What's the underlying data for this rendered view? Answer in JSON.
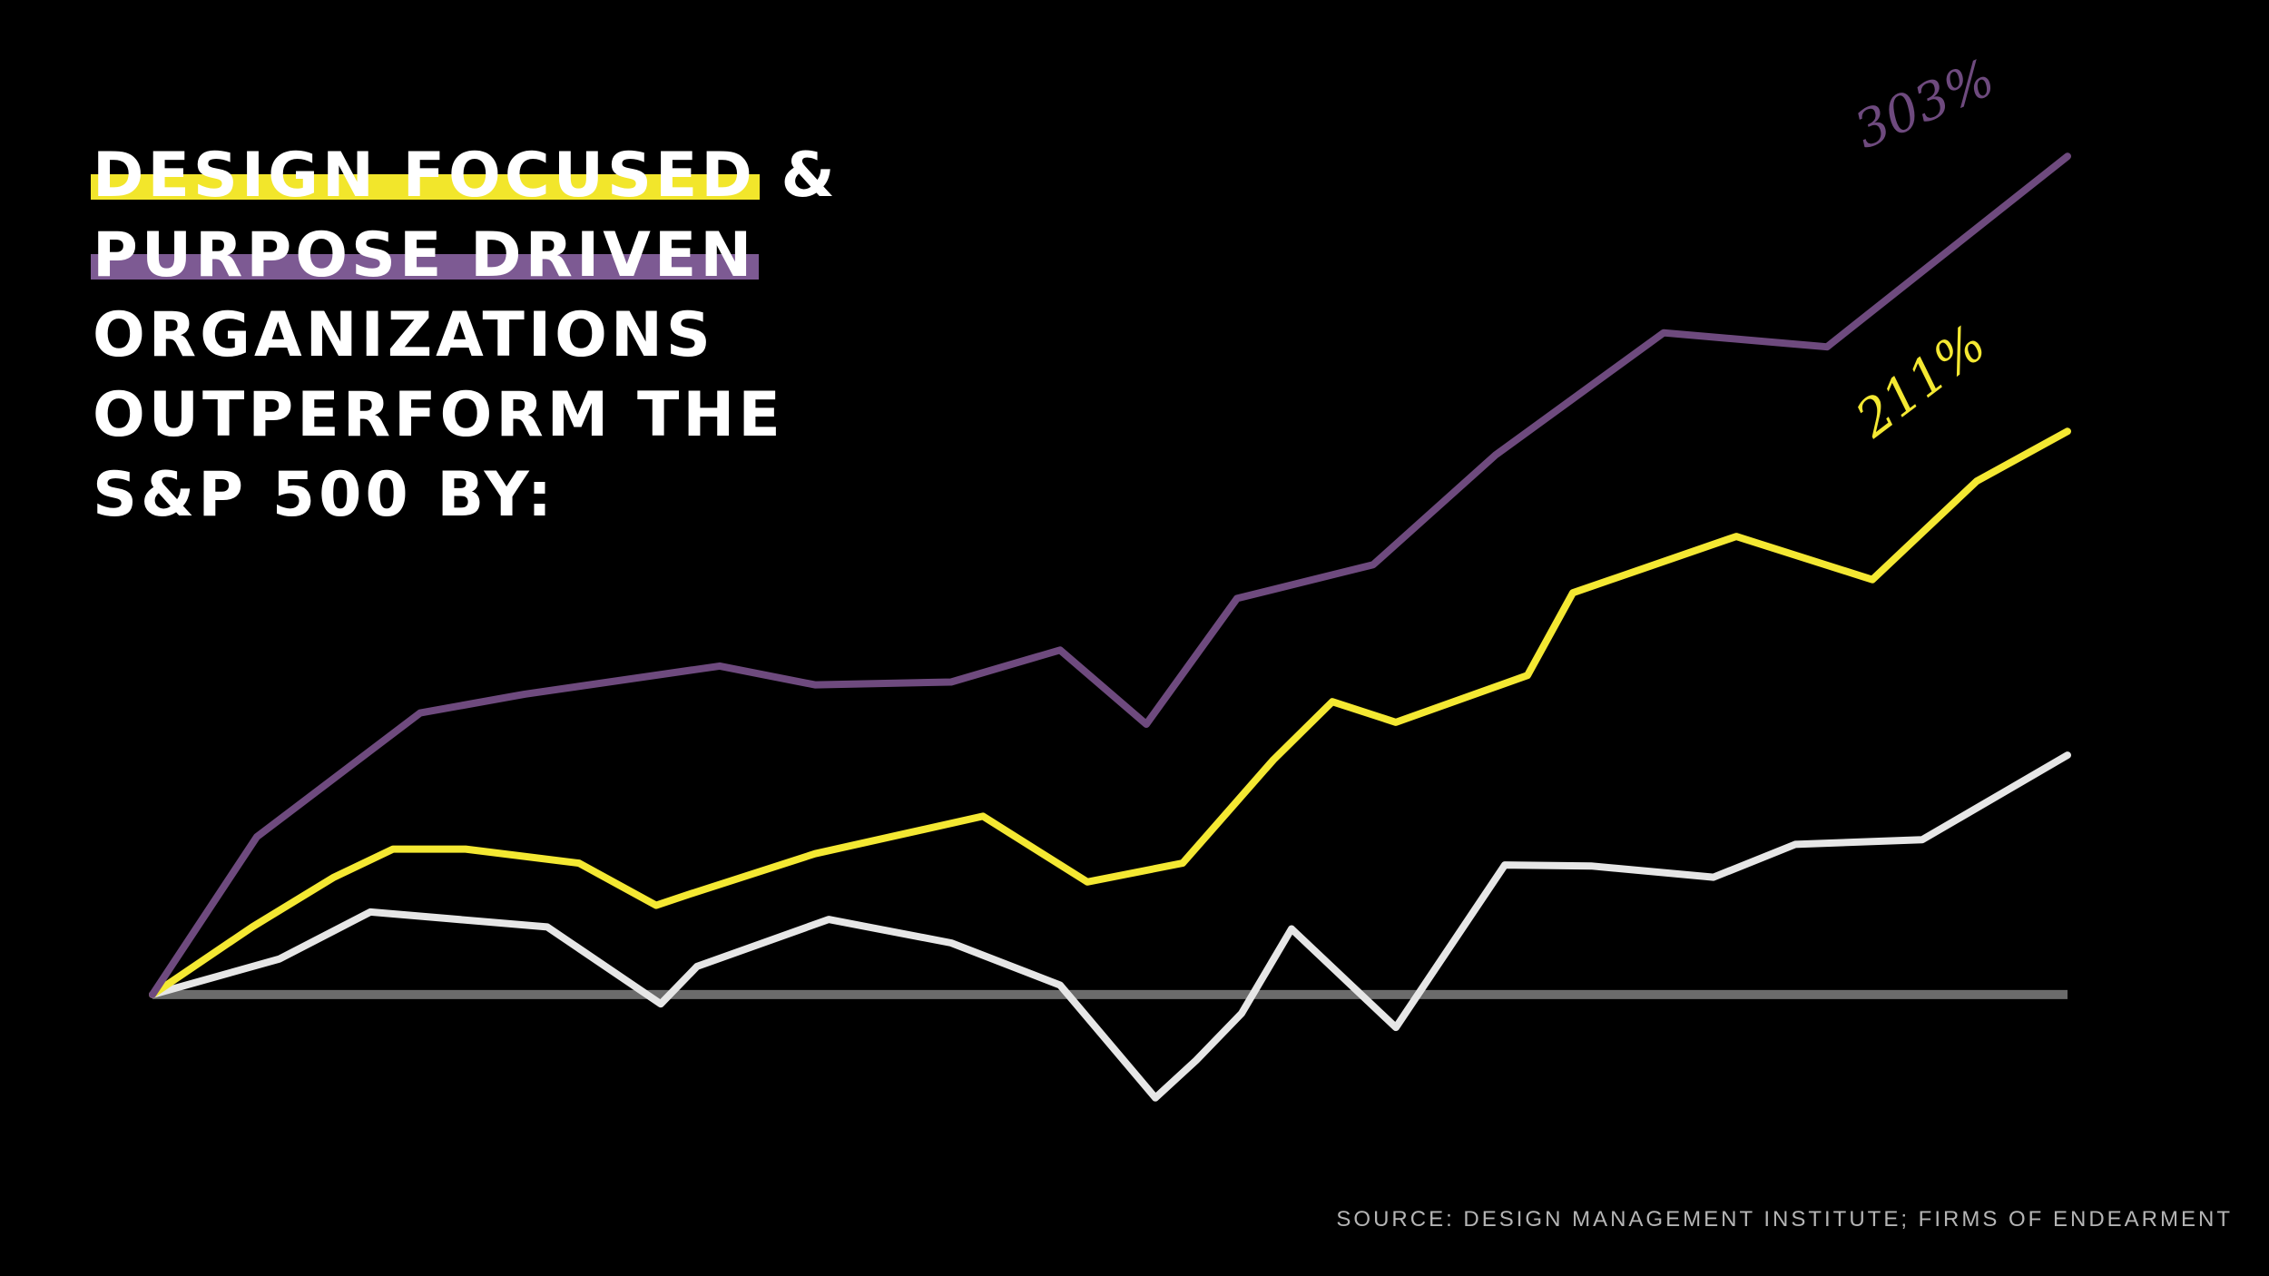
{
  "headline": {
    "line1_highlight": "DESIGN FOCUSED",
    "line1_rest": " &",
    "line2_highlight": "PURPOSE DRIVEN",
    "line3": "ORGANIZATIONS",
    "line4": "OUTPERFORM THE",
    "line5": "S&P 500 BY:"
  },
  "source": "SOURCE: DESIGN MANAGEMENT INSTITUTE; FIRMS OF ENDEARMENT",
  "colors": {
    "background": "#000000",
    "purple": "#6e4a7e",
    "yellow": "#f4e832",
    "white": "#e6e6e6",
    "baseline": "#6b6b6b"
  },
  "chart_data": {
    "type": "line",
    "xlim": [
      0,
      2110
    ],
    "ylim": [
      -120,
      900
    ],
    "grid": false,
    "legend": "none",
    "baseline": 0,
    "series": [
      {
        "color": "#6e4a7e",
        "end_label": "303%",
        "points": [
          [
            0,
            0
          ],
          [
            115,
            168
          ],
          [
            295,
            300
          ],
          [
            410,
            320
          ],
          [
            625,
            350
          ],
          [
            730,
            330
          ],
          [
            880,
            333
          ],
          [
            1000,
            367
          ],
          [
            1095,
            288
          ],
          [
            1195,
            422
          ],
          [
            1345,
            458
          ],
          [
            1480,
            575
          ],
          [
            1665,
            705
          ],
          [
            1845,
            690
          ],
          [
            2110,
            893
          ]
        ]
      },
      {
        "color": "#f4e832",
        "end_label": "211%",
        "points": [
          [
            0,
            0
          ],
          [
            110,
            72
          ],
          [
            200,
            125
          ],
          [
            265,
            155
          ],
          [
            345,
            155
          ],
          [
            470,
            140
          ],
          [
            555,
            95
          ],
          [
            595,
            108
          ],
          [
            730,
            150
          ],
          [
            915,
            190
          ],
          [
            1030,
            120
          ],
          [
            1135,
            140
          ],
          [
            1235,
            250
          ],
          [
            1300,
            312
          ],
          [
            1370,
            290
          ],
          [
            1515,
            340
          ],
          [
            1565,
            428
          ],
          [
            1745,
            488
          ],
          [
            1895,
            442
          ],
          [
            2010,
            547
          ],
          [
            2110,
            600
          ]
        ]
      },
      {
        "color": "#e6e6e6",
        "points": [
          [
            0,
            0
          ],
          [
            140,
            38
          ],
          [
            240,
            88
          ],
          [
            435,
            72
          ],
          [
            560,
            -10
          ],
          [
            600,
            30
          ],
          [
            745,
            80
          ],
          [
            880,
            55
          ],
          [
            1000,
            10
          ],
          [
            1105,
            -110
          ],
          [
            1150,
            -70
          ],
          [
            1200,
            -20
          ],
          [
            1255,
            70
          ],
          [
            1370,
            -35
          ],
          [
            1490,
            138
          ],
          [
            1585,
            137
          ],
          [
            1720,
            125
          ],
          [
            1810,
            160
          ],
          [
            1950,
            165
          ],
          [
            2110,
            255
          ]
        ]
      }
    ]
  }
}
